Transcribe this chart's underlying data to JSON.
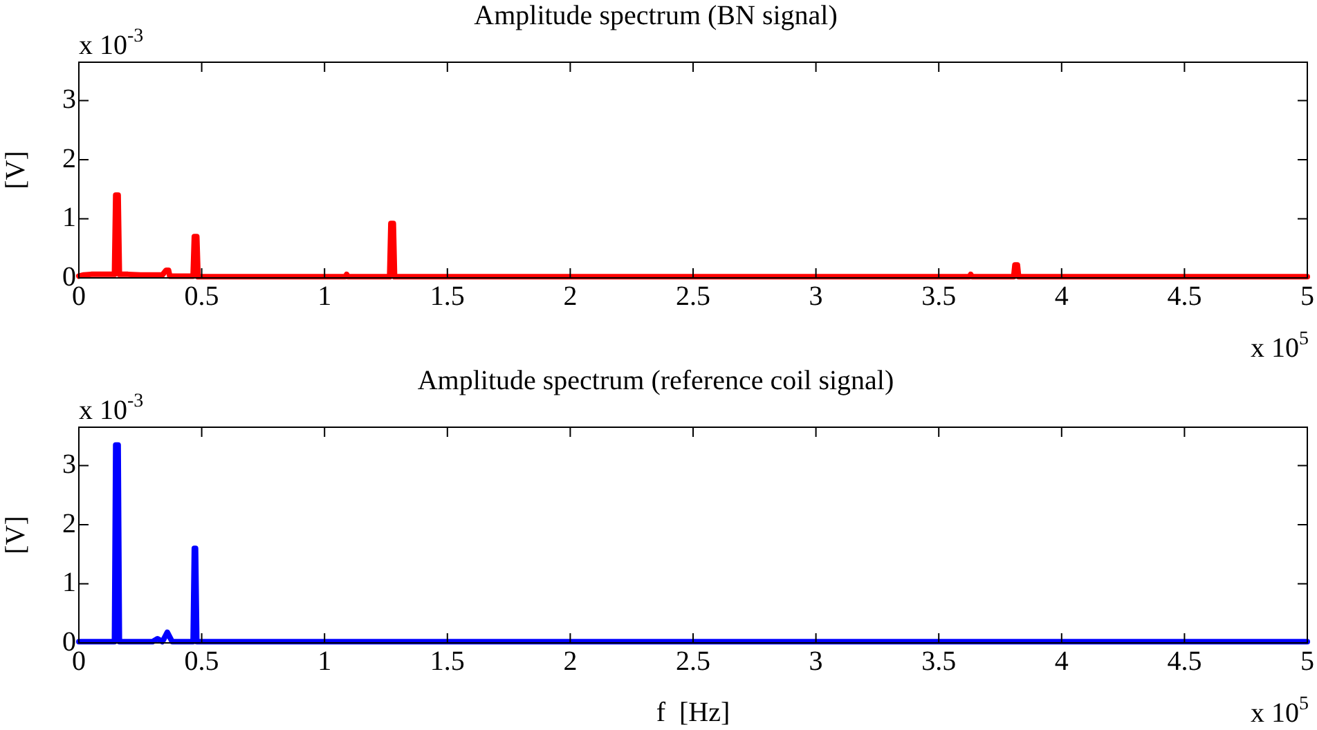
{
  "chart_data": [
    {
      "type": "line",
      "title": "Amplitude spectrum (BN signal)",
      "ylabel": "[V]",
      "annotations": [
        "x 10$^{-3}$",
        "x 10$^{5}$"
      ],
      "series": [
        {
          "color": "#ff0000",
          "x": [
            0,
            0.02,
            0.05,
            0.1,
            0.145,
            0.15,
            0.16,
            0.165,
            0.2,
            0.25,
            0.3,
            0.34,
            0.355,
            0.365,
            0.37,
            0.465,
            0.47,
            0.48,
            0.485,
            1.085,
            1.09,
            1.095,
            1.265,
            1.27,
            1.28,
            1.285,
            3.625,
            3.63,
            3.635,
            3.805,
            3.81,
            3.82,
            3.825,
            5
          ],
          "values": [
            0.03,
            0.05,
            0.06,
            0.06,
            0.06,
            1.4,
            1.4,
            0.06,
            0.06,
            0.05,
            0.05,
            0.05,
            0.13,
            0.13,
            0.03,
            0.03,
            0.7,
            0.7,
            0.02,
            0.02,
            0.06,
            0.02,
            0.02,
            0.92,
            0.92,
            0.02,
            0.02,
            0.06,
            0.02,
            0.02,
            0.22,
            0.22,
            0.02,
            0.02
          ]
        }
      ],
      "xlim": [
        0,
        5
      ],
      "xticks": [
        0,
        0.5,
        1,
        1.5,
        2,
        2.5,
        3,
        3.5,
        4,
        4.5,
        5
      ],
      "ylim": [
        0,
        3.65
      ],
      "yticks": [
        0,
        1,
        2,
        3
      ],
      "grid": false,
      "legend": false,
      "marker": "none",
      "line_style": "solid"
    },
    {
      "type": "line",
      "title": "Amplitude spectrum (reference coil signal)",
      "xlabel": "f  [Hz]",
      "ylabel": "[V]",
      "annotations": [
        "x 10$^{-3}$",
        "x 10$^{5}$"
      ],
      "series": [
        {
          "color": "#0000ff",
          "x": [
            0,
            0.145,
            0.15,
            0.16,
            0.165,
            0.3,
            0.32,
            0.34,
            0.36,
            0.38,
            0.465,
            0.47,
            0.475,
            0.48,
            5
          ],
          "values": [
            0.02,
            0.02,
            3.35,
            3.35,
            0.02,
            0.02,
            0.07,
            0.02,
            0.18,
            0.02,
            0.02,
            1.6,
            1.6,
            0.02,
            0.02
          ]
        }
      ],
      "xlim": [
        0,
        5
      ],
      "xticks": [
        0,
        0.5,
        1,
        1.5,
        2,
        2.5,
        3,
        3.5,
        4,
        4.5,
        5
      ],
      "ylim": [
        0,
        3.65
      ],
      "yticks": [
        0,
        1,
        2,
        3
      ],
      "grid": false,
      "legend": false,
      "marker": "none",
      "line_style": "solid"
    }
  ]
}
